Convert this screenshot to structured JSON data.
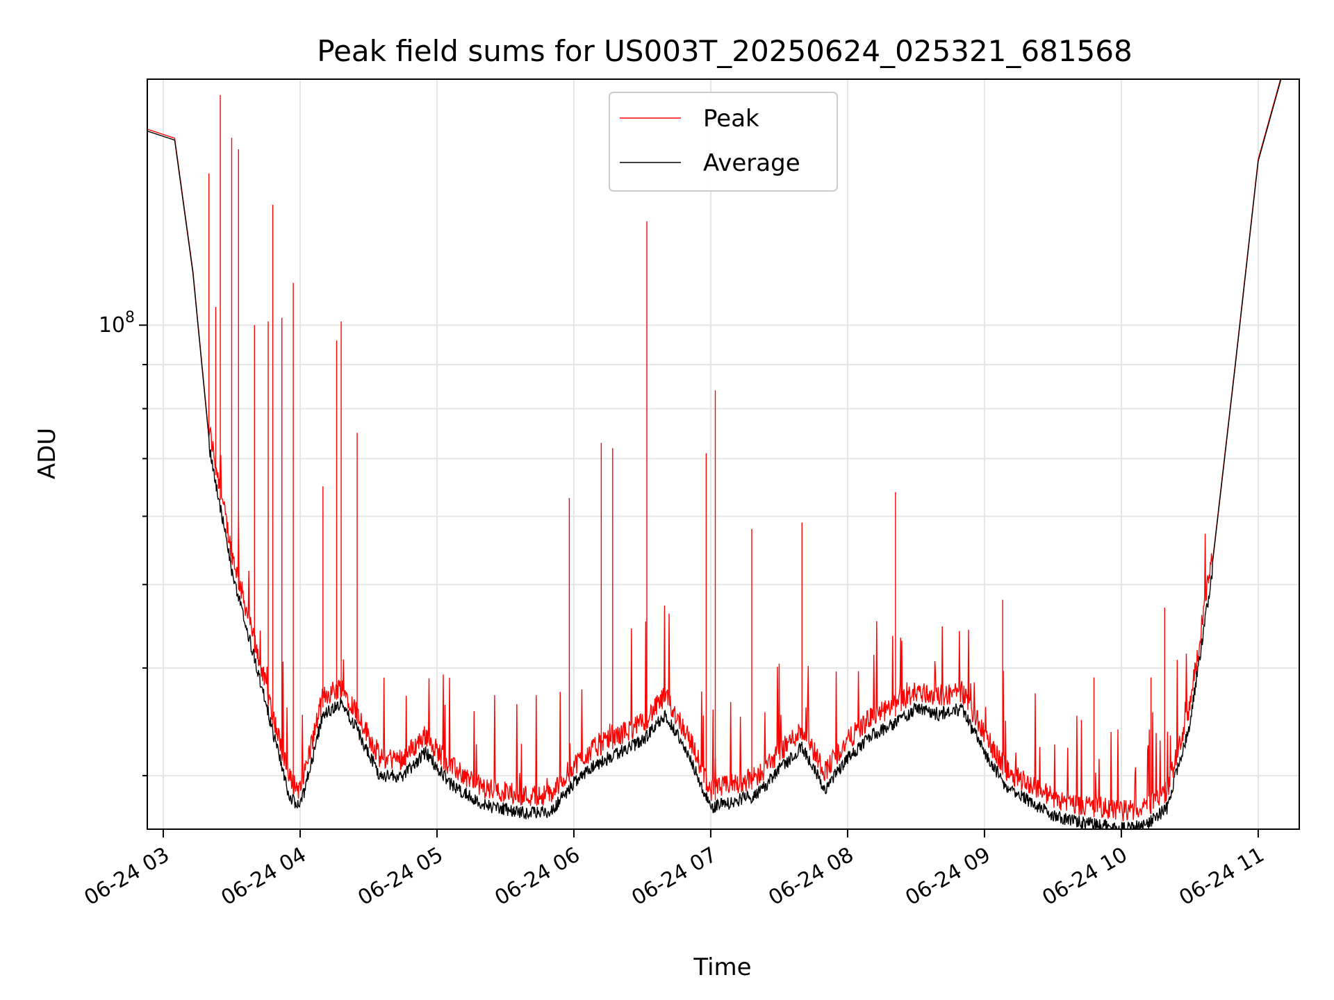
{
  "chart_data": {
    "type": "line",
    "title": "Peak field sums for US003T_20250624_025321_681568",
    "xlabel": "Time",
    "ylabel": "ADU",
    "x_ticks": [
      "06-24 03",
      "06-24 04",
      "06-24 05",
      "06-24 06",
      "06-24 07",
      "06-24 08",
      "06-24 09",
      "06-24 10",
      "06-24 11"
    ],
    "xlim": [
      "06-24 02:53",
      "06-24 11:18"
    ],
    "y_scale": "log",
    "ylim": [
      26000000,
      193000000
    ],
    "y_major_ticks": [
      {
        "value": 100000000,
        "base": "10",
        "exponent": "8"
      }
    ],
    "grid": true,
    "legend": {
      "position": "upper-center"
    },
    "series": [
      {
        "name": "Peak",
        "color": "#ff0000",
        "spikes": [
          {
            "time": "06-24 03:20",
            "value": 150000000
          },
          {
            "time": "06-24 03:25",
            "value": 185000000
          },
          {
            "time": "06-24 03:30",
            "value": 165000000
          },
          {
            "time": "06-24 03:33",
            "value": 160000000
          },
          {
            "time": "06-24 03:23",
            "value": 105000000
          },
          {
            "time": "06-24 03:40",
            "value": 100000000
          },
          {
            "time": "06-24 03:46",
            "value": 101000000
          },
          {
            "time": "06-24 03:52",
            "value": 102000000
          },
          {
            "time": "06-24 03:57",
            "value": 112000000
          },
          {
            "time": "06-24 03:48",
            "value": 138000000
          },
          {
            "time": "06-24 04:16",
            "value": 96000000
          },
          {
            "time": "06-24 04:18",
            "value": 101000000
          },
          {
            "time": "06-24 04:25",
            "value": 75000000
          },
          {
            "time": "06-24 04:10",
            "value": 65000000
          },
          {
            "time": "06-24 06:32",
            "value": 132000000
          },
          {
            "time": "06-24 07:02",
            "value": 84000000
          },
          {
            "time": "06-24 06:58",
            "value": 71000000
          },
          {
            "time": "06-24 06:12",
            "value": 73000000
          },
          {
            "time": "06-24 06:17",
            "value": 72000000
          },
          {
            "time": "06-24 08:21",
            "value": 64000000
          },
          {
            "time": "06-24 07:40",
            "value": 59000000
          },
          {
            "time": "06-24 07:18",
            "value": 58000000
          },
          {
            "time": "06-24 05:58",
            "value": 63000000
          },
          {
            "time": "06-24 09:08",
            "value": 48000000
          },
          {
            "time": "06-24 10:19",
            "value": 47000000
          },
          {
            "time": "06-24 09:48",
            "value": 39000000
          },
          {
            "time": "06-24 10:13",
            "value": 39000000
          }
        ]
      },
      {
        "name": "Average",
        "color": "#000000",
        "x": [
          "06-24 02:53",
          "06-24 03:05",
          "06-24 03:13",
          "06-24 03:20",
          "06-24 03:30",
          "06-24 03:45",
          "06-24 03:55",
          "06-24 04:00",
          "06-24 04:10",
          "06-24 04:18",
          "06-24 04:25",
          "06-24 04:35",
          "06-24 04:45",
          "06-24 04:55",
          "06-24 05:05",
          "06-24 05:20",
          "06-24 05:40",
          "06-24 05:50",
          "06-24 06:00",
          "06-24 06:10",
          "06-24 06:20",
          "06-24 06:30",
          "06-24 06:40",
          "06-24 06:50",
          "06-24 07:00",
          "06-24 07:10",
          "06-24 07:20",
          "06-24 07:30",
          "06-24 07:40",
          "06-24 07:50",
          "06-24 08:00",
          "06-24 08:10",
          "06-24 08:20",
          "06-24 08:30",
          "06-24 08:40",
          "06-24 08:50",
          "06-24 09:00",
          "06-24 09:10",
          "06-24 09:20",
          "06-24 09:30",
          "06-24 09:40",
          "06-24 09:50",
          "06-24 10:00",
          "06-24 10:10",
          "06-24 10:20",
          "06-24 10:30",
          "06-24 10:40",
          "06-24 10:50",
          "06-24 11:00",
          "06-24 11:10"
        ],
        "values": [
          168000000,
          164000000,
          115000000,
          74000000,
          53000000,
          37000000,
          29000000,
          28000000,
          36000000,
          37000000,
          34500000,
          30500000,
          30500000,
          32500000,
          30000000,
          28200000,
          27600000,
          27700000,
          30000000,
          31500000,
          32500000,
          33500000,
          36000000,
          32500000,
          28000000,
          28500000,
          29000000,
          31000000,
          33000000,
          29500000,
          32000000,
          34000000,
          35000000,
          36500000,
          36000000,
          36500000,
          32500000,
          29500000,
          28500000,
          27500000,
          27000000,
          26800000,
          26500000,
          26700000,
          28000000,
          35000000,
          53000000,
          90000000,
          155000000,
          193000000
        ]
      }
    ]
  }
}
